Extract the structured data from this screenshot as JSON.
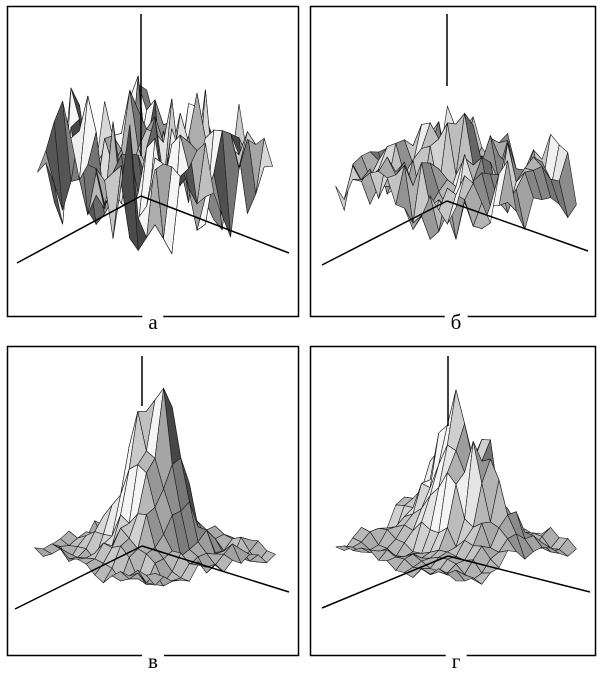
{
  "figure": {
    "panels": [
      {
        "label": "а",
        "style": "dense-noisy"
      },
      {
        "label": "б",
        "style": "medium-noisy"
      },
      {
        "label": "в",
        "style": "central-peak"
      },
      {
        "label": "г",
        "style": "ridge-peaks"
      }
    ],
    "colors": {
      "frame": "#000000",
      "axis": "#000000",
      "mesh": "#1a1a1a",
      "background": "#ffffff"
    }
  }
}
